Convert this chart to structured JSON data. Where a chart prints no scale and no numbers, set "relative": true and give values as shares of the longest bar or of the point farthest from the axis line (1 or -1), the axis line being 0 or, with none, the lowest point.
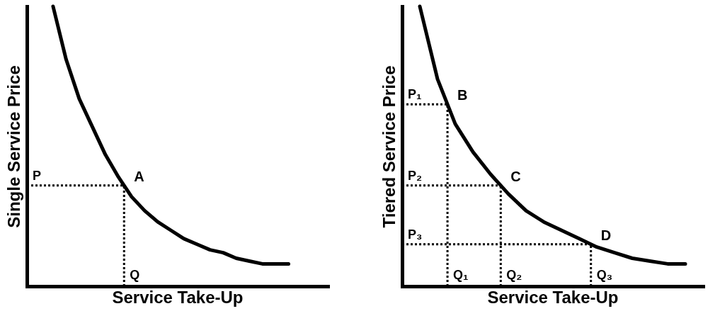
{
  "chart_data": [
    {
      "type": "line",
      "relative": true,
      "xlabel": "Service Take-Up",
      "ylabel": "Single Service Price",
      "categories": [
        null,
        null,
        null,
        null,
        null,
        null,
        null,
        null,
        null,
        null,
        null,
        null,
        null,
        null,
        null,
        null,
        null,
        null,
        null,
        null,
        null,
        null,
        null,
        null
      ],
      "series": [
        {
          "color": "#000000",
          "values": [
            null,
            null,
            1,
            0.81,
            0.67,
            0.57,
            0.47,
            0.39,
            0.32,
            0.27,
            0.23,
            0.2,
            0.17,
            0.15,
            0.13,
            0.12,
            0.1,
            0.09,
            0.08,
            0.08,
            0.08,
            null,
            null,
            null
          ]
        }
      ],
      "ref_lines": [
        {
          "axis": "y",
          "value": 0.36,
          "label": "P",
          "color": "#000000",
          "line_style": "dotted"
        }
      ],
      "annotations": [
        "A",
        "Q"
      ]
    },
    {
      "type": "line",
      "relative": true,
      "xlabel": "Service Take-Up",
      "ylabel": "Tiered Service Price",
      "categories": [
        null,
        null,
        null,
        null,
        null,
        null,
        null,
        null,
        null,
        null,
        null,
        null,
        null,
        null,
        null,
        null,
        null,
        null
      ],
      "series": [
        {
          "color": "#000000",
          "values": [
            null,
            1,
            0.74,
            0.58,
            0.48,
            0.4,
            0.33,
            0.27,
            0.23,
            0.2,
            0.17,
            0.14,
            0.12,
            0.1,
            0.09,
            0.08,
            0.08,
            null
          ]
        }
      ],
      "ref_lines": [
        {
          "axis": "y",
          "value": 0.65,
          "label": "P₁",
          "color": "#000000",
          "line_style": "dotted"
        },
        {
          "axis": "y",
          "value": 0.36,
          "label": "P₂",
          "color": "#000000",
          "line_style": "dotted"
        },
        {
          "axis": "y",
          "value": 0.15,
          "label": "P₃",
          "color": "#000000",
          "line_style": "dotted"
        }
      ],
      "annotations": [
        "B",
        "C",
        "D",
        "Q₁",
        "Q₂",
        "Q₃"
      ]
    }
  ]
}
